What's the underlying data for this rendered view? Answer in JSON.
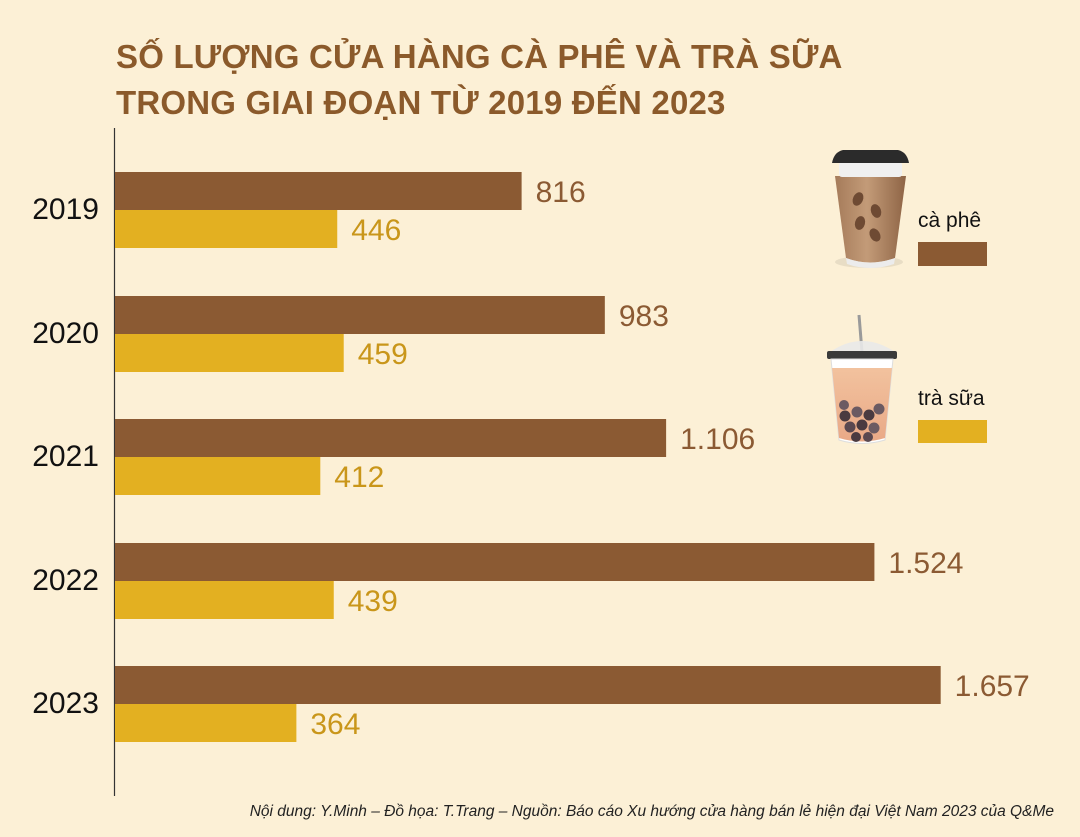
{
  "title_lines": [
    "SỐ LƯỢNG CỬA HÀNG CÀ PHÊ VÀ TRÀ SỮA",
    "TRONG GIAI ĐOẠN TỪ 2019 ĐẾN 2023"
  ],
  "source": "Nội dung: Y.Minh – Đồ họa: T.Trang – Nguồn: Báo cáo Xu hướng cửa hàng bán lẻ hiện đại Việt Nam 2023 của Q&Me",
  "chart_data": {
    "type": "bar",
    "orientation": "horizontal",
    "title": "SỐ LƯỢNG CỬA HÀNG CÀ PHÊ VÀ TRÀ SỮA TRONG GIAI ĐOẠN TỪ 2019 ĐẾN 2023",
    "categories": [
      "2019",
      "2020",
      "2021",
      "2022",
      "2023"
    ],
    "series": [
      {
        "name": "cà phê",
        "color": "#8b5a33",
        "label_color": "#8b5a33",
        "values": [
          816,
          983,
          1106,
          1524,
          1657
        ],
        "labels": [
          "816",
          "983",
          "1.106",
          "1.524",
          "1.657"
        ]
      },
      {
        "name": "trà sữa",
        "color": "#e3b021",
        "label_color": "#c9961a",
        "values": [
          446,
          459,
          412,
          439,
          364
        ],
        "labels": [
          "446",
          "459",
          "412",
          "439",
          "364"
        ]
      }
    ],
    "xlim": [
      0,
      1700
    ],
    "grid": false,
    "legend_position": "right",
    "legend_icons": [
      "coffee-cup-icon",
      "bubble-tea-icon"
    ]
  }
}
